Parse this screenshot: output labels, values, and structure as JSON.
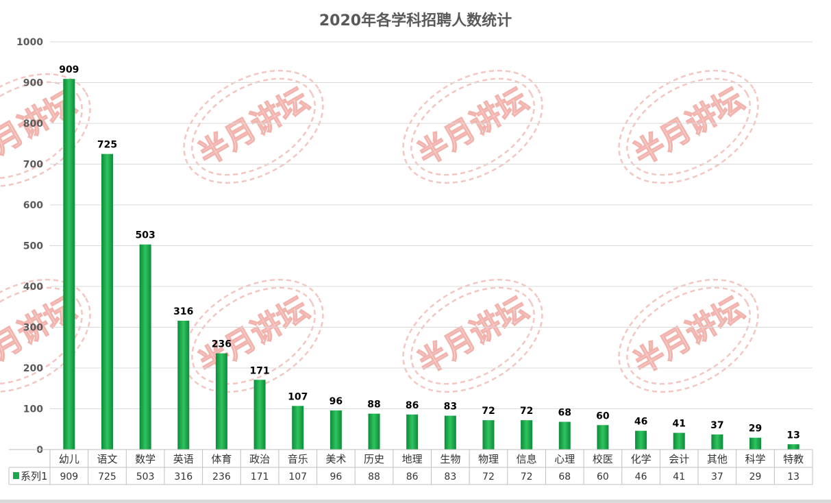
{
  "chart_data": {
    "type": "bar",
    "title": "2020年各学科招聘人数统计",
    "categories": [
      "幼儿",
      "语文",
      "数学",
      "英语",
      "体育",
      "政治",
      "音乐",
      "美术",
      "历史",
      "地理",
      "生物",
      "物理",
      "信息",
      "心理",
      "校医",
      "化学",
      "会计",
      "其他",
      "科学",
      "特教"
    ],
    "series": [
      {
        "name": "系列1",
        "values": [
          909,
          725,
          503,
          316,
          236,
          171,
          107,
          96,
          88,
          86,
          83,
          72,
          72,
          68,
          60,
          46,
          41,
          37,
          29,
          13
        ]
      }
    ],
    "ylim": [
      0,
      1000
    ],
    "yticks": [
      0,
      100,
      200,
      300,
      400,
      500,
      600,
      700,
      800,
      900,
      1000
    ],
    "grid": true,
    "data_table": true,
    "bar_color": "#1aa84a",
    "watermark": "半月讲坛"
  }
}
